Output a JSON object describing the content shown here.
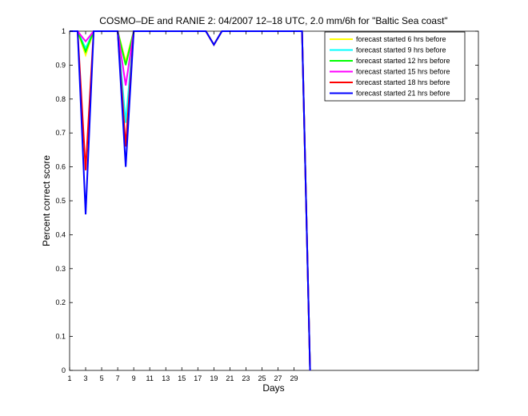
{
  "chart_data": {
    "type": "line",
    "title": "COSMO–DE and RANIE 2: 04/2007 12–18 UTC, 2.0 mm/6h for \"Baltic Sea coast\"",
    "xlabel": "Days",
    "ylabel": "Percent correct score",
    "xlim": [
      1,
      52
    ],
    "ylim": [
      0,
      1
    ],
    "xticks": [
      1,
      3,
      5,
      7,
      9,
      11,
      13,
      15,
      17,
      19,
      21,
      23,
      25,
      27,
      29
    ],
    "xtick_labels": [
      "1",
      "3",
      "5",
      "7",
      "9",
      "11",
      "13",
      "15",
      "17",
      "19",
      "21",
      "23",
      "25",
      "27",
      "29"
    ],
    "yticks": [
      0,
      0.1,
      0.2,
      0.3,
      0.4,
      0.5,
      0.6,
      0.7,
      0.8,
      0.9,
      1
    ],
    "ytick_labels": [
      "0",
      "0.1",
      "0.2",
      "0.3",
      "0.4",
      "0.5",
      "0.6",
      "0.7",
      "0.8",
      "0.9",
      "1"
    ],
    "grid": false,
    "legend_position": "top-right",
    "x": [
      1,
      2,
      3,
      4,
      5,
      6,
      7,
      8,
      9,
      10,
      11,
      12,
      13,
      14,
      15,
      16,
      17,
      18,
      19,
      20,
      21,
      22,
      23,
      24,
      25,
      26,
      27,
      28,
      29,
      30,
      31
    ],
    "series": [
      {
        "name": "forecast started 6 hrs before",
        "color": "#ffff00",
        "values": [
          1,
          1,
          0.93,
          1,
          1,
          1,
          1,
          0.91,
          1,
          1,
          1,
          1,
          1,
          1,
          1,
          1,
          1,
          1,
          0.96,
          1,
          1,
          1,
          1,
          1,
          1,
          1,
          1,
          1,
          1,
          1,
          0
        ]
      },
      {
        "name": "forecast started 9 hrs before",
        "color": "#00ffff",
        "values": [
          1,
          1,
          0.95,
          1,
          1,
          1,
          1,
          0.73,
          1,
          1,
          1,
          1,
          1,
          1,
          1,
          1,
          1,
          1,
          0.96,
          1,
          1,
          1,
          1,
          1,
          1,
          1,
          1,
          1,
          1,
          1,
          0
        ]
      },
      {
        "name": "forecast started 12 hrs before",
        "color": "#00ff00",
        "values": [
          1,
          1,
          0.94,
          1,
          1,
          1,
          1,
          0.9,
          1,
          1,
          1,
          1,
          1,
          1,
          1,
          1,
          1,
          1,
          0.96,
          1,
          1,
          1,
          1,
          1,
          1,
          1,
          1,
          1,
          1,
          1,
          0
        ]
      },
      {
        "name": "forecast started 15 hrs before",
        "color": "#ff00ff",
        "values": [
          1,
          1,
          0.97,
          1,
          1,
          1,
          1,
          0.84,
          1,
          1,
          1,
          1,
          1,
          1,
          1,
          1,
          1,
          1,
          0.96,
          1,
          1,
          1,
          1,
          1,
          1,
          1,
          1,
          1,
          1,
          1,
          0
        ]
      },
      {
        "name": "forecast started 18 hrs before",
        "color": "#ff0000",
        "values": [
          1,
          1,
          0.59,
          1,
          1,
          1,
          1,
          0.66,
          1,
          1,
          1,
          1,
          1,
          1,
          1,
          1,
          1,
          1,
          0.96,
          1,
          1,
          1,
          1,
          1,
          1,
          1,
          1,
          1,
          1,
          1,
          0
        ]
      },
      {
        "name": "forecast started 21 hrs before",
        "color": "#0000ff",
        "values": [
          1,
          1,
          0.46,
          1,
          1,
          1,
          1,
          0.6,
          1,
          1,
          1,
          1,
          1,
          1,
          1,
          1,
          1,
          1,
          0.96,
          1,
          1,
          1,
          1,
          1,
          1,
          1,
          1,
          1,
          1,
          1,
          0
        ]
      }
    ]
  }
}
